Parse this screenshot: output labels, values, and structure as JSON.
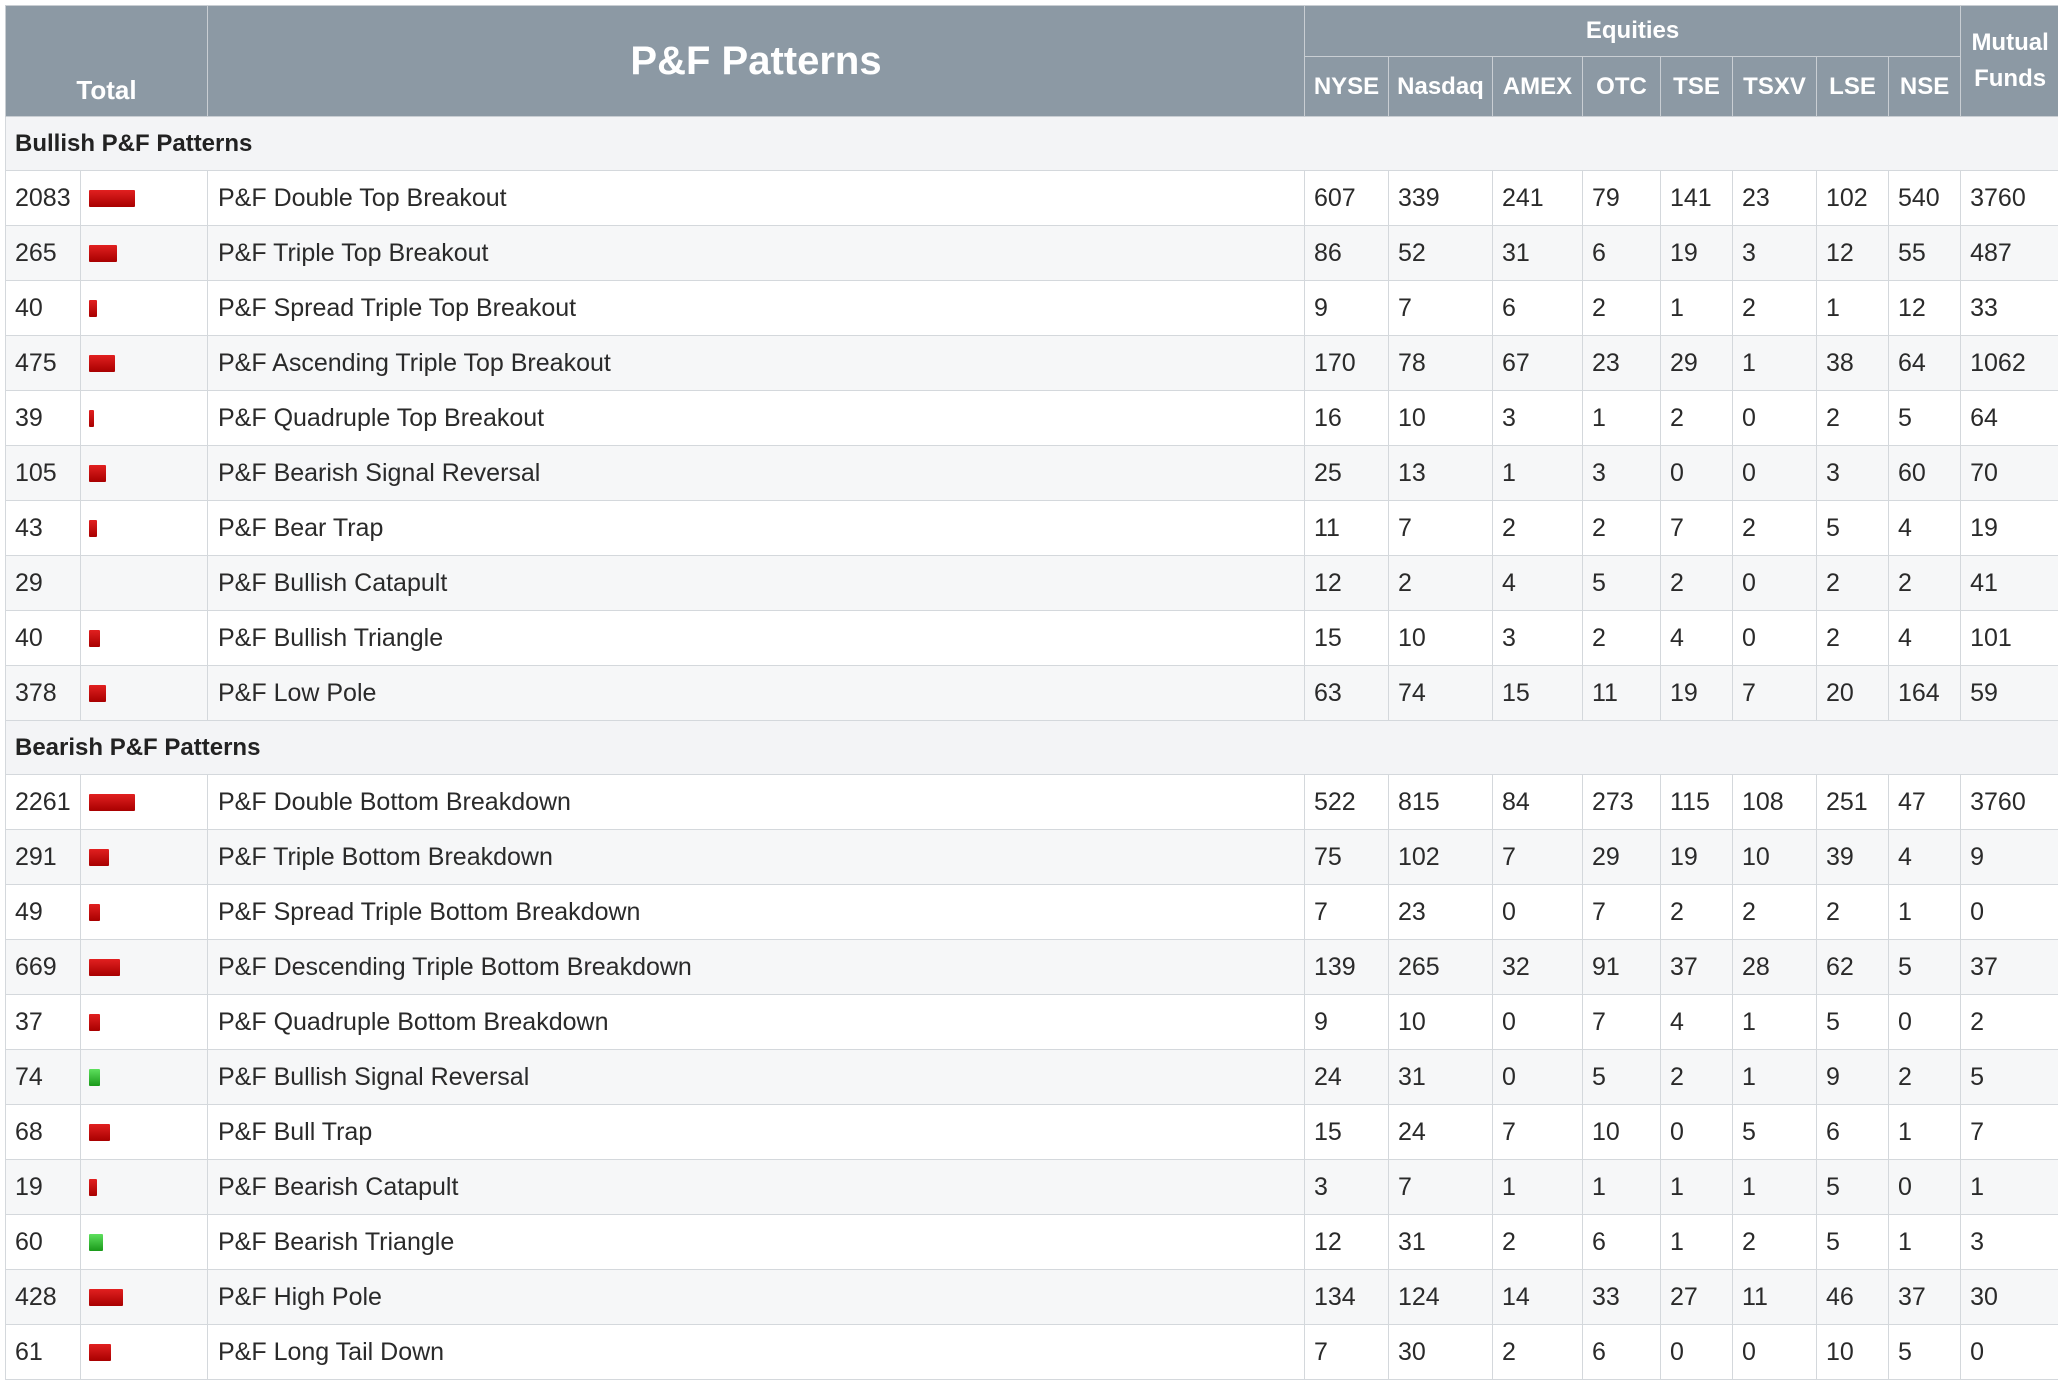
{
  "header": {
    "title": "P&F Patterns",
    "total_label": "Total",
    "equities_label": "Equities",
    "mutual_funds_label": "Mutual Funds",
    "exchanges": [
      "NYSE",
      "Nasdaq",
      "AMEX",
      "OTC",
      "TSE",
      "TSXV",
      "LSE",
      "NSE"
    ]
  },
  "colors": {
    "header_bg": "#8c99a4",
    "link": "#1d5a91",
    "bar_red": "#cc0000",
    "bar_green": "#22aa22"
  },
  "sections": [
    {
      "title": "Bullish P&F Patterns",
      "rows": [
        {
          "total": "2083",
          "bar": "red",
          "bar_fraction": 0.92,
          "name": "P&F Double Top Breakout",
          "values": [
            "607",
            "339",
            "241",
            "79",
            "141",
            "23",
            "102",
            "540",
            "3760"
          ]
        },
        {
          "total": "265",
          "bar": "red",
          "bar_fraction": 0.55,
          "name": "P&F Triple Top Breakout",
          "values": [
            "86",
            "52",
            "31",
            "6",
            "19",
            "3",
            "12",
            "55",
            "487"
          ]
        },
        {
          "total": "40",
          "bar": "red",
          "bar_fraction": 0.15,
          "name": "P&F Spread Triple Top Breakout",
          "values": [
            "9",
            "7",
            "6",
            "2",
            "1",
            "2",
            "1",
            "12",
            "33"
          ]
        },
        {
          "total": "475",
          "bar": "red",
          "bar_fraction": 0.52,
          "name": "P&F Ascending Triple Top Breakout",
          "values": [
            "170",
            "78",
            "67",
            "23",
            "29",
            "1",
            "38",
            "64",
            "1062"
          ]
        },
        {
          "total": "39",
          "bar": "red",
          "bar_fraction": 0.07,
          "name": "P&F Quadruple Top Breakout",
          "values": [
            "16",
            "10",
            "3",
            "1",
            "2",
            "0",
            "2",
            "5",
            "64"
          ]
        },
        {
          "total": "105",
          "bar": "red",
          "bar_fraction": 0.34,
          "name": "P&F Bearish Signal Reversal",
          "values": [
            "25",
            "13",
            "1",
            "3",
            "0",
            "0",
            "3",
            "60",
            "70"
          ]
        },
        {
          "total": "43",
          "bar": "red",
          "bar_fraction": 0.15,
          "name": "P&F Bear Trap",
          "values": [
            "11",
            "7",
            "2",
            "2",
            "7",
            "2",
            "5",
            "4",
            "19"
          ]
        },
        {
          "total": "29",
          "bar": "none",
          "bar_fraction": 0,
          "name": "P&F Bullish Catapult",
          "values": [
            "12",
            "2",
            "4",
            "5",
            "2",
            "0",
            "2",
            "2",
            "41"
          ]
        },
        {
          "total": "40",
          "bar": "red",
          "bar_fraction": 0.22,
          "name": "P&F Bullish Triangle",
          "values": [
            "15",
            "10",
            "3",
            "2",
            "4",
            "0",
            "2",
            "4",
            "101"
          ]
        },
        {
          "total": "378",
          "bar": "red",
          "bar_fraction": 0.34,
          "name": "P&F Low Pole",
          "values": [
            "63",
            "74",
            "15",
            "11",
            "19",
            "7",
            "20",
            "164",
            "59"
          ]
        }
      ]
    },
    {
      "title": "Bearish P&F Patterns",
      "rows": [
        {
          "total": "2261",
          "bar": "red",
          "bar_fraction": 0.92,
          "name": "P&F Double Bottom Breakdown",
          "values": [
            "522",
            "815",
            "84",
            "273",
            "115",
            "108",
            "251",
            "47",
            "3760"
          ]
        },
        {
          "total": "291",
          "bar": "red",
          "bar_fraction": 0.4,
          "name": "P&F Triple Bottom Breakdown",
          "values": [
            "75",
            "102",
            "7",
            "29",
            "19",
            "10",
            "39",
            "4",
            "9"
          ]
        },
        {
          "total": "49",
          "bar": "red",
          "bar_fraction": 0.22,
          "name": "P&F Spread Triple Bottom Breakdown",
          "values": [
            "7",
            "23",
            "0",
            "7",
            "2",
            "2",
            "2",
            "1",
            "0"
          ]
        },
        {
          "total": "669",
          "bar": "red",
          "bar_fraction": 0.62,
          "name": "P&F Descending Triple Bottom Breakdown",
          "values": [
            "139",
            "265",
            "32",
            "91",
            "37",
            "28",
            "62",
            "5",
            "37"
          ]
        },
        {
          "total": "37",
          "bar": "red",
          "bar_fraction": 0.22,
          "name": "P&F Quadruple Bottom Breakdown",
          "values": [
            "9",
            "10",
            "0",
            "7",
            "4",
            "1",
            "5",
            "0",
            "2"
          ]
        },
        {
          "total": "74",
          "bar": "green",
          "bar_fraction": 0.22,
          "name": "P&F Bullish Signal Reversal",
          "values": [
            "24",
            "31",
            "0",
            "5",
            "2",
            "1",
            "9",
            "2",
            "5"
          ]
        },
        {
          "total": "68",
          "bar": "red",
          "bar_fraction": 0.42,
          "name": "P&F Bull Trap",
          "values": [
            "15",
            "24",
            "7",
            "10",
            "0",
            "5",
            "6",
            "1",
            "7"
          ]
        },
        {
          "total": "19",
          "bar": "red",
          "bar_fraction": 0.15,
          "name": "P&F Bearish Catapult",
          "values": [
            "3",
            "7",
            "1",
            "1",
            "1",
            "1",
            "5",
            "0",
            "1"
          ]
        },
        {
          "total": "60",
          "bar": "green",
          "bar_fraction": 0.28,
          "name": "P&F Bearish Triangle",
          "values": [
            "12",
            "31",
            "2",
            "6",
            "1",
            "2",
            "5",
            "1",
            "3"
          ]
        },
        {
          "total": "428",
          "bar": "red",
          "bar_fraction": 0.68,
          "name": "P&F High Pole",
          "values": [
            "134",
            "124",
            "14",
            "33",
            "27",
            "11",
            "46",
            "37",
            "30"
          ]
        },
        {
          "total": "61",
          "bar": "red",
          "bar_fraction": 0.44,
          "name": "P&F Long Tail Down",
          "values": [
            "7",
            "30",
            "2",
            "6",
            "0",
            "0",
            "10",
            "5",
            "0"
          ]
        }
      ]
    }
  ]
}
